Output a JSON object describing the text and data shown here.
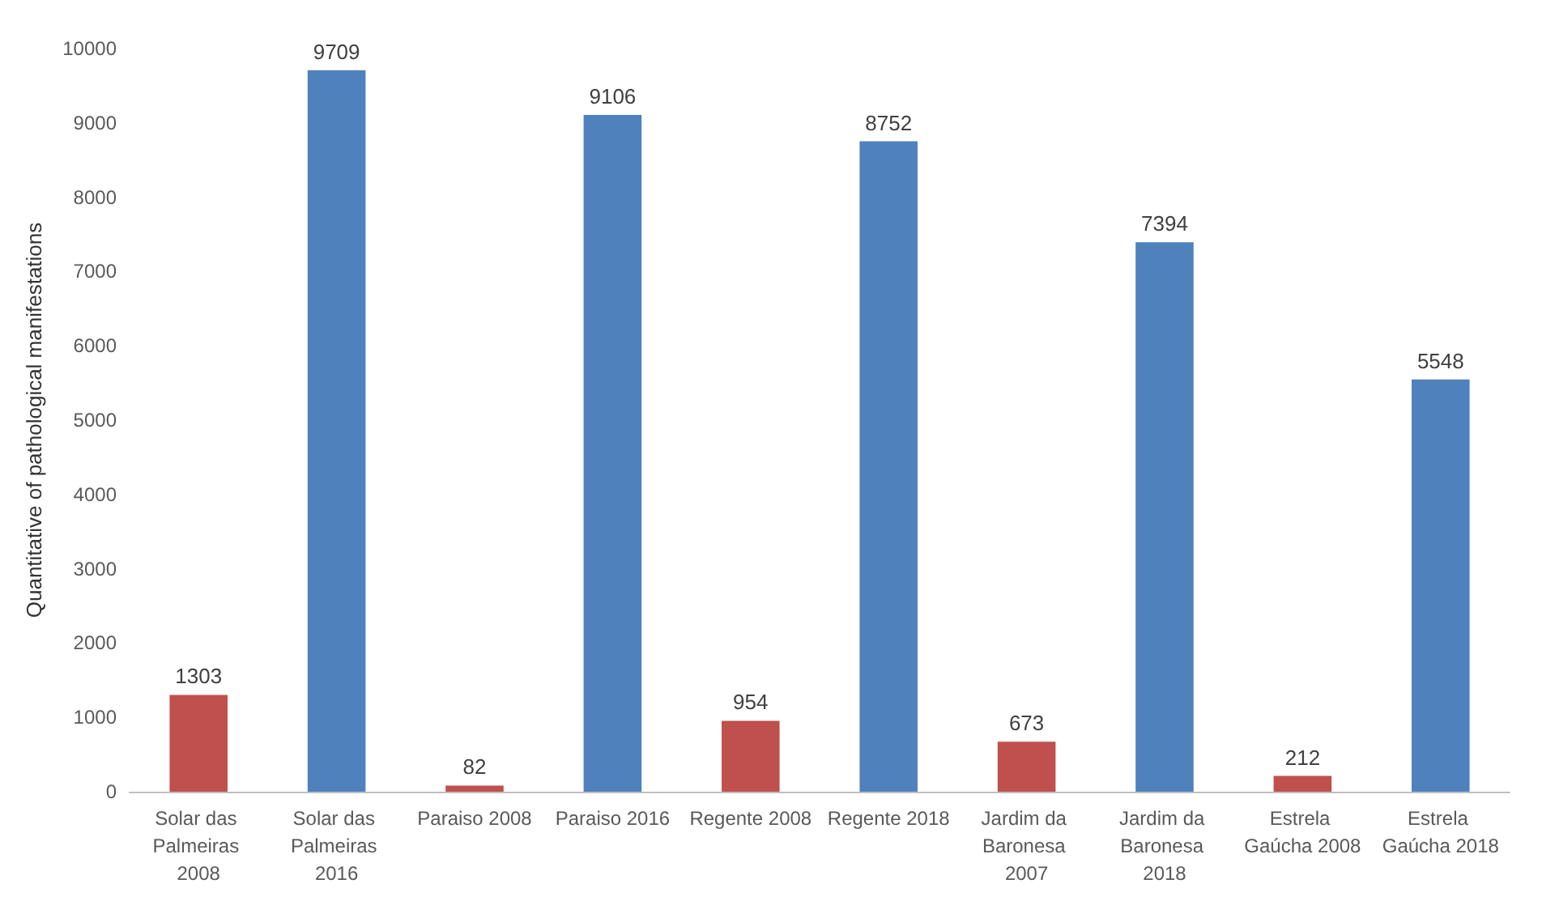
{
  "chart_data": {
    "type": "bar",
    "ylabel": "Quantitative of pathological manifestations",
    "categories": [
      "Solar das Palmeiras 2008",
      "Solar das Palmeiras 2016",
      "Paraiso 2008",
      "Paraiso 2016",
      "Regente 2008",
      "Regente 2018",
      "Jardim da Baronesa 2007",
      "Jardim da Baronesa 2018",
      "Estrela Gaúcha 2008",
      "Estrela Gaúcha 2018"
    ],
    "values": [
      1303,
      9709,
      82,
      9106,
      954,
      8752,
      673,
      7394,
      212,
      5548
    ],
    "colors": [
      "#c0504d",
      "#4f81bd",
      "#c0504d",
      "#4f81bd",
      "#c0504d",
      "#4f81bd",
      "#c0504d",
      "#4f81bd",
      "#c0504d",
      "#4f81bd"
    ],
    "ylim": [
      0,
      10000
    ],
    "yticks": [
      0,
      1000,
      2000,
      3000,
      4000,
      5000,
      6000,
      7000,
      8000,
      9000,
      10000
    ],
    "grid": false,
    "data_labels": true
  }
}
